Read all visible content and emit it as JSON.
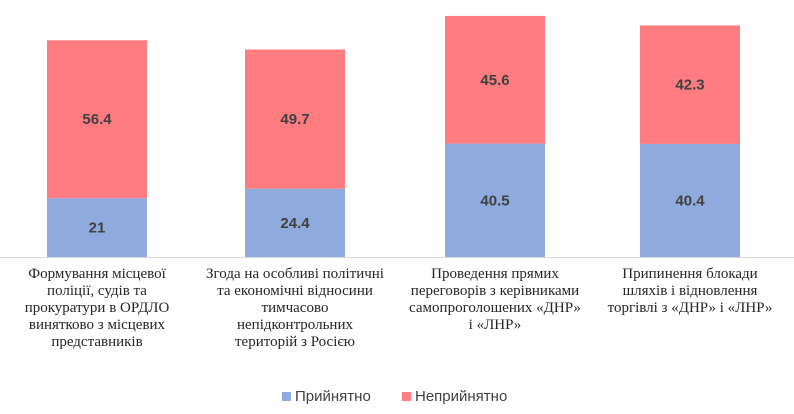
{
  "chart_data": {
    "type": "bar",
    "stacked": true,
    "categories": [
      [
        "Формування місцевої",
        "поліції, судів та",
        "прокуратури в ОРДЛО",
        "винятково з місцевих",
        "представників"
      ],
      [
        "Згода на особливі політичні",
        "та економічні відносини",
        "тимчасово",
        "непідконтрольних",
        "територій з Росією"
      ],
      [
        "Проведення прямих",
        "переговорів з керівниками",
        "самопроголошених «ДНР»",
        "і «ЛНР»"
      ],
      [
        "Припинення блокади",
        "шляхів і відновлення",
        "торгівлі з «ДНР» і «ЛНР»"
      ]
    ],
    "series": [
      {
        "name": "Прийнятно",
        "color": "#8faadc",
        "values": [
          21,
          24.4,
          40.5,
          40.4
        ]
      },
      {
        "name": "Неприйнятно",
        "color": "#ff7c80",
        "values": [
          56.4,
          49.7,
          45.6,
          42.3
        ]
      }
    ],
    "value_labels": [
      [
        "21",
        "24.4",
        "40.5",
        "40.4"
      ],
      [
        "56.4",
        "49.7",
        "45.6",
        "42.3"
      ]
    ],
    "ylim": [
      0,
      90
    ],
    "grid": false,
    "legend_position": "bottom"
  }
}
